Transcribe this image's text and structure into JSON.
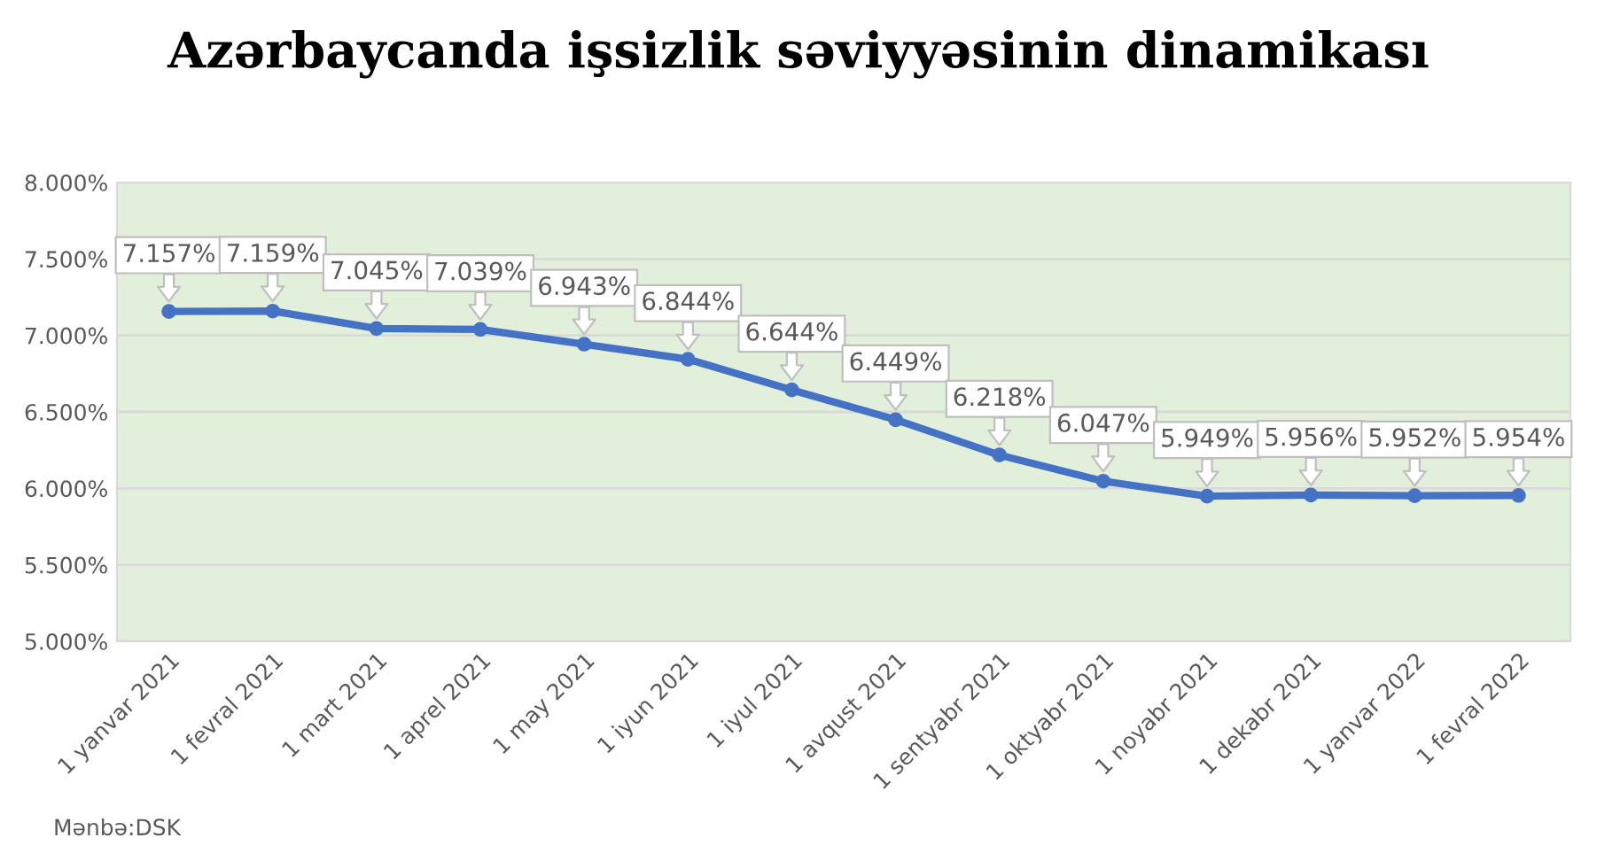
{
  "chart_data": {
    "type": "line",
    "title": "Azərbaycanda işsizlik səviyyəsinin dinamikası",
    "categories": [
      "1 yanvar 2021",
      "1 fevral 2021",
      "1 mart 2021",
      "1 aprel 2021",
      "1 may 2021",
      "1 iyun 2021",
      "1 iyul 2021",
      "1 avqust 2021",
      "1 sentyabr 2021",
      "1 oktyabr 2021",
      "1 noyabr 2021",
      "1 dekabr 2021",
      "1 yanvar 2022",
      "1 fevral 2022"
    ],
    "series": [
      {
        "color": "#4472c4",
        "values": [
          7.157,
          7.159,
          7.045,
          7.039,
          6.943,
          6.844,
          6.644,
          6.449,
          6.218,
          6.047,
          5.949,
          5.956,
          5.952,
          5.954
        ],
        "value_labels": [
          "7.157%",
          "7.159%",
          "7.045%",
          "7.039%",
          "6.943%",
          "6.844%",
          "6.644%",
          "6.449%",
          "6.218%",
          "6.047%",
          "5.949%",
          "5.956%",
          "5.952%",
          "5.954%"
        ]
      }
    ],
    "ylim": [
      5.0,
      8.0
    ],
    "yticks": [
      {
        "value": 5.0,
        "label": "5.000%"
      },
      {
        "value": 5.5,
        "label": "5.500%"
      },
      {
        "value": 6.0,
        "label": "6.000%"
      },
      {
        "value": 6.5,
        "label": "6.500%"
      },
      {
        "value": 7.0,
        "label": "7.000%"
      },
      {
        "value": 7.5,
        "label": "7.500%"
      },
      {
        "value": 8.0,
        "label": "8.000%"
      }
    ],
    "grid": "y",
    "marker": "circle",
    "line_style": "solid",
    "legend": false,
    "annotations": [
      "Mənbə:DSK"
    ]
  }
}
